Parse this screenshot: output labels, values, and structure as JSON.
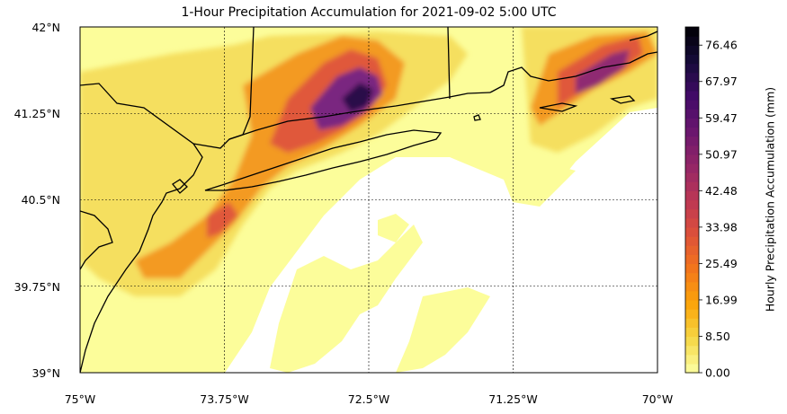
{
  "title": "1-Hour Precipitation Accumulation for 2021-09-02 5:00 UTC",
  "map": {
    "lon_range": [
      -75,
      -70
    ],
    "lat_range": [
      39,
      42
    ],
    "lon_ticks": [
      "75°W",
      "73.75°W",
      "72.5°W",
      "71.25°W",
      "70°W"
    ],
    "lat_ticks": [
      "42°N",
      "41.25°N",
      "40.5°N",
      "39.75°N",
      "39°N"
    ],
    "gridlines": "dashed",
    "colormap": "inferno_r",
    "colors": {
      "low": "#fcfd9a",
      "mid_low": "#f7e26a",
      "mid": "#f59c22",
      "mid_high": "#e35933",
      "high": "#a52c60",
      "very_high": "#5a1a7a",
      "max": "#1b0c3b",
      "coast": "#000000",
      "no_precip": "#ffffff"
    }
  },
  "colorbar": {
    "label": "Hourly Precipitation Accumulation (mm)",
    "ticks": [
      "0.00",
      "8.50",
      "16.99",
      "25.49",
      "33.98",
      "42.48",
      "50.97",
      "59.47",
      "67.97",
      "76.46"
    ],
    "range": [
      0,
      80.7
    ]
  }
}
